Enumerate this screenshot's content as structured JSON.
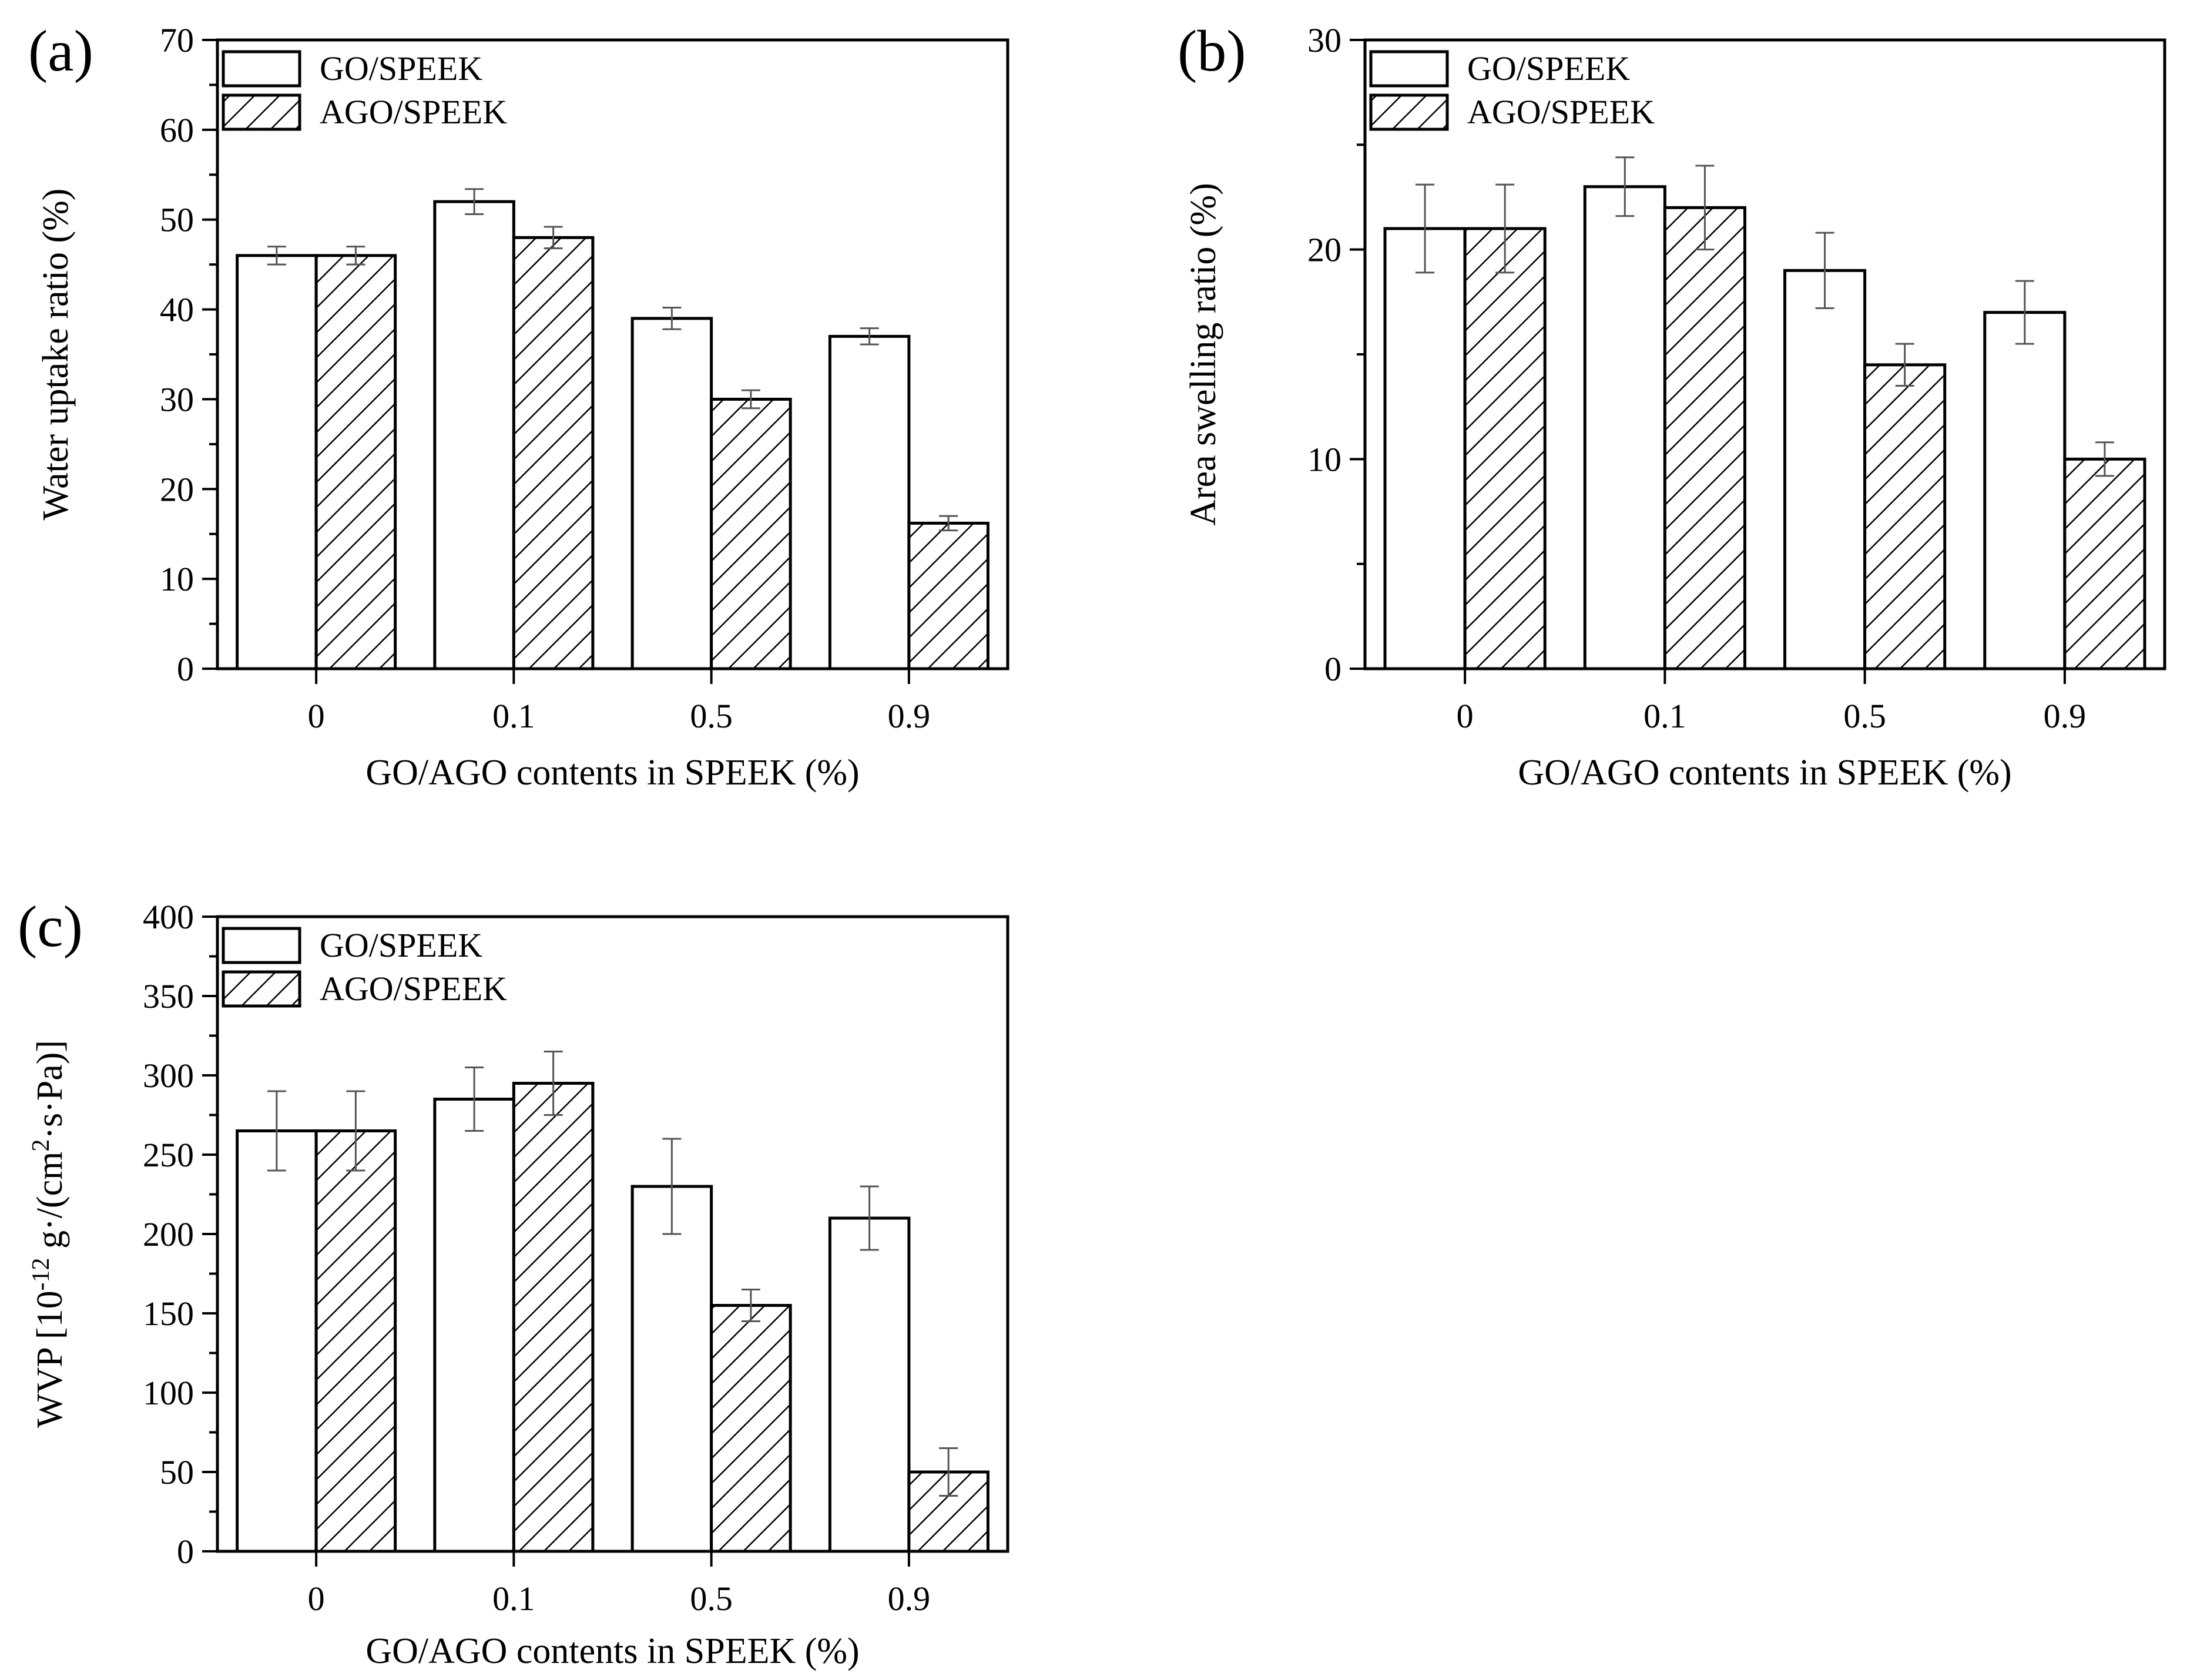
{
  "figure": {
    "legend_labels": [
      "GO/SPEEK",
      "AGO/SPEEK"
    ],
    "colors": {
      "go_fill": "#ffffff",
      "stroke": "#000000",
      "hatch": "#000000",
      "error_bar": "#555555"
    }
  },
  "chart_data": [
    {
      "panel": "(a)",
      "type": "bar",
      "categories": [
        "0",
        "0.1",
        "0.5",
        "0.9"
      ],
      "xlabel": "GO/AGO contents in SPEEK (%)",
      "ylabel": "Water uptake ratio (%)",
      "ylim": [
        0,
        70
      ],
      "yticks": [
        0,
        10,
        20,
        30,
        40,
        50,
        60,
        70
      ],
      "legend_position": "top-left",
      "series": [
        {
          "name": "GO/SPEEK",
          "pattern": "open",
          "values": [
            46,
            52,
            39,
            37
          ],
          "errors": [
            1.0,
            1.4,
            1.2,
            0.9
          ]
        },
        {
          "name": "AGO/SPEEK",
          "pattern": "hatched",
          "values": [
            46,
            48,
            30,
            16.2
          ],
          "errors": [
            1.0,
            1.2,
            1.0,
            0.8
          ]
        }
      ]
    },
    {
      "panel": "(b)",
      "type": "bar",
      "categories": [
        "0",
        "0.1",
        "0.5",
        "0.9"
      ],
      "xlabel": "GO/AGO contents in SPEEK (%)",
      "ylabel": "Area swelling ratio (%)",
      "ylim": [
        0,
        30
      ],
      "yticks": [
        0,
        10,
        20,
        30
      ],
      "legend_position": "top-left",
      "series": [
        {
          "name": "GO/SPEEK",
          "pattern": "open",
          "values": [
            21,
            23,
            19,
            17
          ],
          "errors": [
            2.1,
            1.4,
            1.8,
            1.5
          ]
        },
        {
          "name": "AGO/SPEEK",
          "pattern": "hatched",
          "values": [
            21,
            22,
            14.5,
            10
          ],
          "errors": [
            2.1,
            2.0,
            1.0,
            0.8
          ]
        }
      ]
    },
    {
      "panel": "(c)",
      "type": "bar",
      "categories": [
        "0",
        "0.1",
        "0.5",
        "0.9"
      ],
      "xlabel": "GO/AGO contents in SPEEK (%)",
      "ylabel": "WVP [10-12 g·/(cm2·s·Pa)]",
      "ylabel_parts": {
        "a": "WVP [10",
        "exp1": "-12",
        "b": " g·/(cm",
        "exp2": "2",
        "c": "·s·Pa)]"
      },
      "ylim": [
        0,
        400
      ],
      "yticks": [
        0,
        50,
        100,
        150,
        200,
        250,
        300,
        350,
        400
      ],
      "legend_position": "top-left",
      "series": [
        {
          "name": "GO/SPEEK",
          "pattern": "open",
          "values": [
            265,
            285,
            230,
            210
          ],
          "errors": [
            25,
            20,
            30,
            20
          ]
        },
        {
          "name": "AGO/SPEEK",
          "pattern": "hatched",
          "values": [
            265,
            295,
            155,
            50
          ],
          "errors": [
            25,
            20,
            10,
            15
          ]
        }
      ]
    }
  ]
}
